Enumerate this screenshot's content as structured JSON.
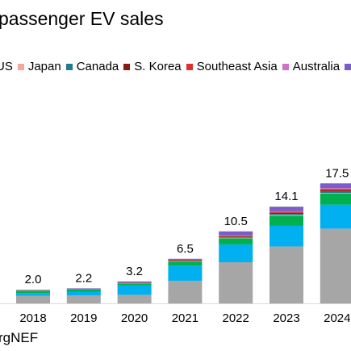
{
  "title": "passenger EV sales",
  "source": "rgNEF",
  "chart_data": {
    "type": "bar",
    "stacked": true,
    "title": "passenger EV sales",
    "categories": [
      "2018",
      "2019",
      "2020",
      "2021",
      "2022",
      "2023",
      "2024"
    ],
    "totals": [
      2.0,
      2.2,
      3.2,
      6.5,
      10.5,
      14.1,
      17.5
    ],
    "ylim": [
      0,
      18
    ],
    "grid": false,
    "legend_position": "top",
    "series": [
      {
        "key": "china",
        "color": "#a6a6a6",
        "values": [
          1.1,
          1.15,
          1.25,
          3.3,
          6.0,
          8.3,
          10.9
        ]
      },
      {
        "key": "europe",
        "color": "#00b0f0",
        "values": [
          0.4,
          0.55,
          1.35,
          2.2,
          2.6,
          3.0,
          3.5
        ]
      },
      {
        "key": "us",
        "color": "#00b050",
        "values": [
          0.35,
          0.3,
          0.3,
          0.6,
          0.9,
          1.5,
          1.6
        ]
      },
      {
        "name": "Japan",
        "color": "#f4a79d",
        "values": [
          0.04,
          0.03,
          0.03,
          0.04,
          0.06,
          0.1,
          0.1
        ]
      },
      {
        "name": "Canada",
        "color": "#1f7c8c",
        "values": [
          0.03,
          0.05,
          0.05,
          0.08,
          0.11,
          0.16,
          0.25
        ]
      },
      {
        "name": "S. Korea",
        "color": "#8b1a10",
        "values": [
          0.03,
          0.03,
          0.05,
          0.08,
          0.12,
          0.15,
          0.15
        ]
      },
      {
        "name": "Southeast Asia",
        "color": "#e0302b",
        "values": [
          0.01,
          0.01,
          0.02,
          0.04,
          0.08,
          0.15,
          0.2
        ]
      },
      {
        "name": "Australia",
        "color": "#d070c8",
        "values": [
          0.01,
          0.01,
          0.01,
          0.02,
          0.04,
          0.08,
          0.1
        ]
      },
      {
        "key": "other",
        "color": "#7b5cc8",
        "values": [
          0.03,
          0.07,
          0.14,
          0.14,
          0.59,
          0.66,
          0.7
        ]
      }
    ]
  },
  "legend": [
    {
      "name": "US",
      "color": "#00b050"
    },
    {
      "name": "Japan",
      "color": "#f4a79d"
    },
    {
      "name": "Canada",
      "color": "#1f7c8c"
    },
    {
      "name": "S. Korea",
      "color": "#8b1a10"
    },
    {
      "name": "Southeast Asia",
      "color": "#e0302b"
    },
    {
      "name": "Australia",
      "color": "#d070c8"
    },
    {
      "name": "",
      "color": "#7b5cc8"
    }
  ]
}
